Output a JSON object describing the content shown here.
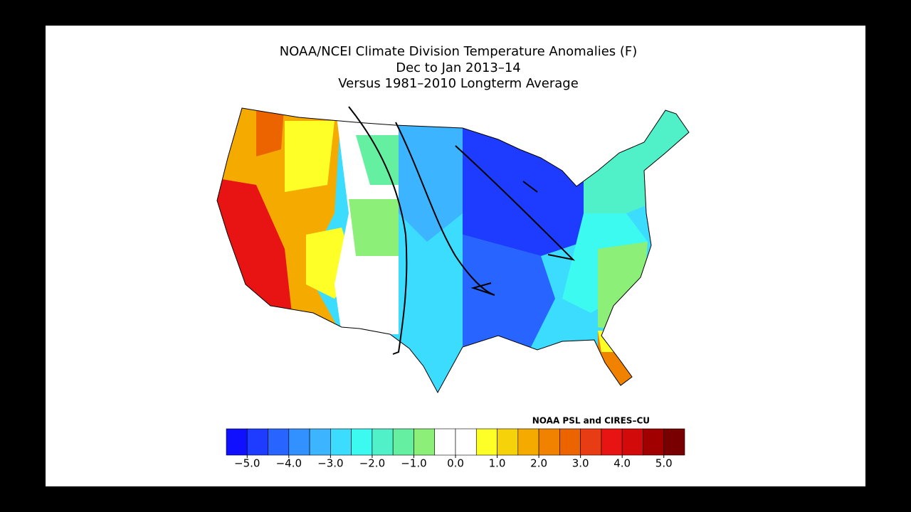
{
  "title": [
    "NOAA/NCEI Climate Division Temperature Anomalies (F)",
    "Dec to Jan 2013–14",
    "Versus 1981–2010 Longterm Average"
  ],
  "credit": "NOAA PSL and CIRES–CU",
  "colorbar": {
    "lim": [
      -5.5,
      5.5
    ],
    "colors": [
      "#1010ff",
      "#1e3cff",
      "#2864ff",
      "#3290ff",
      "#3cb4ff",
      "#3cdcff",
      "#3cfaf0",
      "#50f0c8",
      "#64f0a0",
      "#8cf078",
      "#ffffff",
      "#ffffff",
      "#ffff28",
      "#f5d20a",
      "#f5aa00",
      "#f08200",
      "#eb6400",
      "#e83c14",
      "#e81414",
      "#d20a0a",
      "#a00000",
      "#780000"
    ],
    "ticks": [
      {
        "value": -5,
        "label": "−5.0"
      },
      {
        "value": -4,
        "label": "−4.0"
      },
      {
        "value": -3,
        "label": "−3.0"
      },
      {
        "value": -2,
        "label": "−2.0"
      },
      {
        "value": -1,
        "label": "−1.0"
      },
      {
        "value": 0,
        "label": "0.0"
      },
      {
        "value": 1,
        "label": "1.0"
      },
      {
        "value": 2,
        "label": "2.0"
      },
      {
        "value": 3,
        "label": "3.0"
      },
      {
        "value": 4,
        "label": "4.0"
      },
      {
        "value": 5,
        "label": "5.0"
      }
    ]
  }
}
